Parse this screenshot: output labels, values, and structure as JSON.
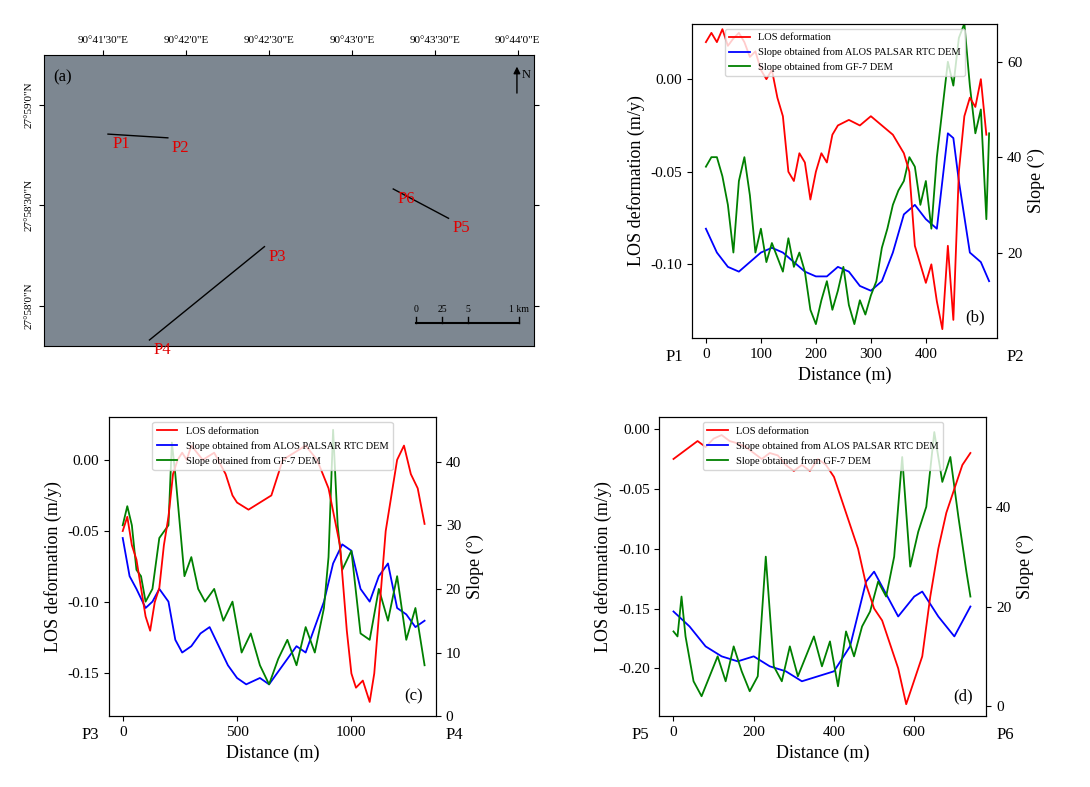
{
  "chart_data": [
    {
      "type": "map",
      "panel_label": "(a)",
      "xlim": [
        90.68565,
        90.735
      ],
      "xticks": [
        {
          "value": 90.691667,
          "label": "90°41'30\"E"
        },
        {
          "value": 90.7,
          "label": "90°42'0\"E"
        },
        {
          "value": 90.708333,
          "label": "90°42'30\"E"
        },
        {
          "value": 90.716667,
          "label": "90°43'0\"E"
        },
        {
          "value": 90.725,
          "label": "90°43'30\"E"
        },
        {
          "value": 90.733333,
          "label": "90°44'0\"E"
        }
      ],
      "ylim": [
        27.96332,
        27.98746
      ],
      "yticks": [
        {
          "value": 27.966667,
          "label": "27°58'0\"N"
        },
        {
          "value": 27.975,
          "label": "27°58'30\"N"
        },
        {
          "value": 27.983333,
          "label": "27°59'0\"N"
        }
      ],
      "profiles": [
        {
          "start": {
            "label": "P1",
            "lon": 90.69213,
            "lat": 27.98091
          },
          "end": {
            "label": "P2",
            "lon": 90.69815,
            "lat": 27.9806
          }
        },
        {
          "start": {
            "label": "P3",
            "lon": 90.70787,
            "lat": 27.97158
          },
          "end": {
            "label": "P4",
            "lon": 90.6963,
            "lat": 27.96384
          }
        },
        {
          "start": {
            "label": "P5",
            "lon": 90.72639,
            "lat": 27.97393
          },
          "end": {
            "label": "P6",
            "lon": 90.72083,
            "lat": 27.97636
          }
        }
      ],
      "north_label": "N",
      "scale_labels": [
        "0",
        "25",
        "5",
        "1 km"
      ]
    },
    {
      "type": "line",
      "panel_label": "(b)",
      "xlabel": "Distance (m)",
      "ylabel": "LOS deformation (m/y)",
      "y2label": "Slope (°)",
      "start_label": "P1",
      "end_label": "P2",
      "legend": "upper center",
      "xlim": [
        -25,
        530
      ],
      "xticks": [
        0,
        100,
        200,
        300,
        400
      ],
      "ylim": [
        -0.14,
        0.03
      ],
      "yticks": [
        {
          "value": -0.1,
          "label": "-0.10"
        },
        {
          "value": -0.05,
          "label": "-0.05"
        },
        {
          "value": 0,
          "label": "0.00"
        }
      ],
      "y2lim": [
        2,
        68
      ],
      "y2ticks": [
        20,
        40,
        60
      ],
      "series": [
        {
          "name": "LOS deformation",
          "color": "#ff0000",
          "x": [
            0,
            10,
            20,
            30,
            40,
            50,
            60,
            70,
            80,
            90,
            100,
            110,
            120,
            130,
            140,
            150,
            160,
            170,
            180,
            190,
            200,
            210,
            220,
            230,
            240,
            260,
            280,
            300,
            320,
            340,
            360,
            370,
            380,
            390,
            400,
            410,
            420,
            430,
            440,
            450,
            460,
            470,
            480,
            490,
            500,
            510
          ],
          "values": [
            0.02,
            0.025,
            0.02,
            0.027,
            0.018,
            0.022,
            0.025,
            0.02,
            0.012,
            0.015,
            0.005,
            0.0,
            0.005,
            -0.01,
            -0.02,
            -0.05,
            -0.055,
            -0.04,
            -0.045,
            -0.065,
            -0.05,
            -0.04,
            -0.045,
            -0.03,
            -0.025,
            -0.022,
            -0.025,
            -0.02,
            -0.025,
            -0.03,
            -0.04,
            -0.05,
            -0.09,
            -0.1,
            -0.11,
            -0.1,
            -0.12,
            -0.135,
            -0.09,
            -0.13,
            -0.05,
            -0.02,
            -0.01,
            -0.015,
            0.0,
            -0.03
          ]
        },
        {
          "name": "Slope obtained from ALOS PALSAR RTC DEM",
          "color": "#0000ff",
          "axis": "y2",
          "x": [
            0,
            20,
            40,
            60,
            80,
            100,
            120,
            140,
            160,
            180,
            200,
            220,
            240,
            260,
            280,
            300,
            320,
            340,
            360,
            380,
            400,
            420,
            440,
            450,
            460,
            480,
            500,
            515
          ],
          "values": [
            25,
            20,
            17,
            16,
            18,
            20,
            21,
            20,
            18,
            16,
            15,
            15,
            17,
            16,
            13,
            12,
            14,
            20,
            28,
            30,
            27,
            25,
            45,
            44,
            35,
            20,
            18,
            14
          ]
        },
        {
          "name": "Slope obtained from GF-7 DEM",
          "color": "#008000",
          "axis": "y2",
          "x": [
            0,
            10,
            20,
            30,
            40,
            50,
            60,
            70,
            80,
            90,
            100,
            110,
            120,
            130,
            140,
            150,
            160,
            170,
            180,
            190,
            200,
            210,
            220,
            230,
            240,
            250,
            260,
            270,
            280,
            290,
            300,
            310,
            320,
            330,
            340,
            350,
            360,
            370,
            380,
            390,
            400,
            410,
            420,
            430,
            440,
            450,
            460,
            470,
            480,
            490,
            500,
            510,
            515
          ],
          "values": [
            38,
            40,
            40,
            36,
            30,
            20,
            35,
            40,
            32,
            20,
            25,
            18,
            22,
            19,
            16,
            23,
            17,
            20,
            16,
            8,
            5,
            10,
            14,
            8,
            12,
            17,
            9,
            5,
            10,
            7,
            11,
            14,
            21,
            25,
            30,
            33,
            35,
            40,
            38,
            30,
            35,
            25,
            40,
            50,
            60,
            55,
            65,
            68,
            55,
            45,
            50,
            27,
            45
          ]
        }
      ]
    },
    {
      "type": "line",
      "panel_label": "(c)",
      "xlabel": "Distance (m)",
      "ylabel": "LOS deformation (m/y)",
      "y2label": "Slope (°)",
      "start_label": "P3",
      "end_label": "P4",
      "legend": "upper center",
      "xlim": [
        -60,
        1370
      ],
      "xticks": [
        0,
        500,
        1000
      ],
      "ylim": [
        -0.18,
        0.03
      ],
      "yticks": [
        {
          "value": -0.15,
          "label": "-0.15"
        },
        {
          "value": -0.1,
          "label": "-0.10"
        },
        {
          "value": -0.05,
          "label": "-0.05"
        },
        {
          "value": 0,
          "label": "0.00"
        }
      ],
      "y2lim": [
        0,
        47
      ],
      "y2ticks": [
        0,
        10,
        20,
        30,
        40
      ],
      "series": [
        {
          "name": "LOS deformation",
          "color": "#ff0000",
          "x": [
            0,
            20,
            40,
            60,
            80,
            100,
            120,
            140,
            160,
            180,
            200,
            220,
            240,
            260,
            280,
            300,
            350,
            400,
            450,
            480,
            500,
            550,
            600,
            650,
            700,
            750,
            800,
            850,
            900,
            950,
            980,
            1000,
            1020,
            1050,
            1080,
            1100,
            1150,
            1200,
            1230,
            1260,
            1290,
            1320
          ],
          "values": [
            -0.05,
            -0.04,
            -0.06,
            -0.07,
            -0.09,
            -0.11,
            -0.12,
            -0.1,
            -0.09,
            -0.06,
            -0.04,
            -0.01,
            0.0,
            0.005,
            0.0,
            0.01,
            0.0,
            0.005,
            -0.01,
            -0.025,
            -0.03,
            -0.035,
            -0.03,
            -0.025,
            0.0,
            0.005,
            0.01,
            0.0,
            -0.02,
            -0.06,
            -0.12,
            -0.15,
            -0.16,
            -0.155,
            -0.17,
            -0.15,
            -0.05,
            0.0,
            0.01,
            -0.01,
            -0.02,
            -0.045
          ]
        },
        {
          "name": "Slope obtained from ALOS PALSAR RTC DEM",
          "color": "#0000ff",
          "axis": "y2",
          "x": [
            0,
            30,
            60,
            100,
            130,
            160,
            200,
            230,
            260,
            300,
            340,
            380,
            420,
            460,
            500,
            540,
            600,
            640,
            680,
            720,
            760,
            800,
            840,
            880,
            920,
            960,
            1000,
            1040,
            1080,
            1120,
            1160,
            1200,
            1240,
            1280,
            1320
          ],
          "values": [
            28,
            22,
            20,
            17,
            18,
            20,
            18,
            12,
            10,
            11,
            13,
            14,
            11,
            8,
            6,
            5,
            6,
            5,
            7,
            9,
            11,
            10,
            14,
            18,
            24,
            27,
            26,
            20,
            18,
            22,
            24,
            17,
            16,
            14,
            15
          ]
        },
        {
          "name": "Slope obtained from GF-7 DEM",
          "color": "#008000",
          "axis": "y2",
          "x": [
            0,
            20,
            40,
            60,
            80,
            100,
            130,
            160,
            200,
            215,
            230,
            250,
            270,
            300,
            330,
            360,
            400,
            440,
            480,
            520,
            560,
            600,
            640,
            680,
            720,
            760,
            800,
            840,
            880,
            900,
            920,
            940,
            960,
            1000,
            1040,
            1080,
            1120,
            1160,
            1200,
            1240,
            1280,
            1320
          ],
          "values": [
            30,
            33,
            30,
            23,
            22,
            18,
            20,
            28,
            30,
            43,
            38,
            30,
            22,
            25,
            20,
            18,
            20,
            15,
            18,
            10,
            13,
            8,
            5,
            9,
            12,
            8,
            14,
            10,
            17,
            25,
            45,
            30,
            23,
            26,
            13,
            12,
            20,
            15,
            22,
            12,
            17,
            8
          ]
        }
      ]
    },
    {
      "type": "line",
      "panel_label": "(d)",
      "xlabel": "Distance (m)",
      "ylabel": "LOS deformation (m/y)",
      "y2label": "Slope (°)",
      "start_label": "P5",
      "end_label": "P6",
      "legend": "upper center",
      "xlim": [
        -35,
        780
      ],
      "xticks": [
        0,
        200,
        400,
        600
      ],
      "ylim": [
        -0.24,
        0.01
      ],
      "yticks": [
        {
          "value": -0.2,
          "label": "-0.20"
        },
        {
          "value": -0.15,
          "label": "-0.15"
        },
        {
          "value": -0.1,
          "label": "-0.10"
        },
        {
          "value": -0.05,
          "label": "-0.05"
        },
        {
          "value": 0,
          "label": "0.00"
        }
      ],
      "y2lim": [
        -2,
        58
      ],
      "y2ticks": [
        0,
        20,
        40
      ],
      "series": [
        {
          "name": "LOS deformation",
          "color": "#ff0000",
          "x": [
            0,
            20,
            40,
            60,
            80,
            100,
            120,
            140,
            160,
            180,
            200,
            220,
            240,
            260,
            280,
            300,
            320,
            340,
            360,
            380,
            400,
            420,
            440,
            460,
            480,
            500,
            520,
            540,
            560,
            580,
            600,
            620,
            640,
            660,
            680,
            700,
            720,
            740
          ],
          "values": [
            -0.025,
            -0.02,
            -0.015,
            -0.01,
            -0.015,
            -0.008,
            -0.005,
            -0.01,
            -0.012,
            -0.015,
            -0.02,
            -0.025,
            -0.02,
            -0.022,
            -0.03,
            -0.035,
            -0.03,
            -0.035,
            -0.025,
            -0.03,
            -0.04,
            -0.06,
            -0.08,
            -0.1,
            -0.13,
            -0.15,
            -0.16,
            -0.18,
            -0.2,
            -0.23,
            -0.21,
            -0.19,
            -0.14,
            -0.1,
            -0.07,
            -0.05,
            -0.03,
            -0.02
          ]
        },
        {
          "name": "Slope obtained from ALOS PALSAR RTC DEM",
          "color": "#0000ff",
          "axis": "y2",
          "x": [
            0,
            40,
            80,
            120,
            160,
            200,
            240,
            280,
            320,
            360,
            400,
            440,
            480,
            500,
            520,
            560,
            600,
            620,
            660,
            700,
            740
          ],
          "values": [
            19,
            16,
            12,
            10,
            9,
            10,
            8,
            7,
            5,
            6,
            7,
            12,
            25,
            27,
            24,
            18,
            22,
            23,
            18,
            14,
            20
          ]
        },
        {
          "name": "Slope obtained from GF-7 DEM",
          "color": "#008000",
          "axis": "y2",
          "x": [
            0,
            10,
            20,
            30,
            50,
            70,
            90,
            110,
            130,
            150,
            170,
            190,
            210,
            230,
            250,
            270,
            290,
            310,
            330,
            350,
            370,
            390,
            410,
            430,
            450,
            470,
            490,
            510,
            530,
            550,
            570,
            590,
            610,
            630,
            650,
            670,
            690,
            710,
            730,
            740
          ],
          "values": [
            15,
            14,
            22,
            14,
            5,
            2,
            6,
            10,
            5,
            12,
            7,
            3,
            6,
            30,
            8,
            5,
            12,
            6,
            10,
            14,
            8,
            13,
            4,
            15,
            10,
            16,
            19,
            25,
            22,
            30,
            50,
            28,
            35,
            40,
            55,
            45,
            50,
            38,
            27,
            22
          ]
        }
      ]
    }
  ]
}
